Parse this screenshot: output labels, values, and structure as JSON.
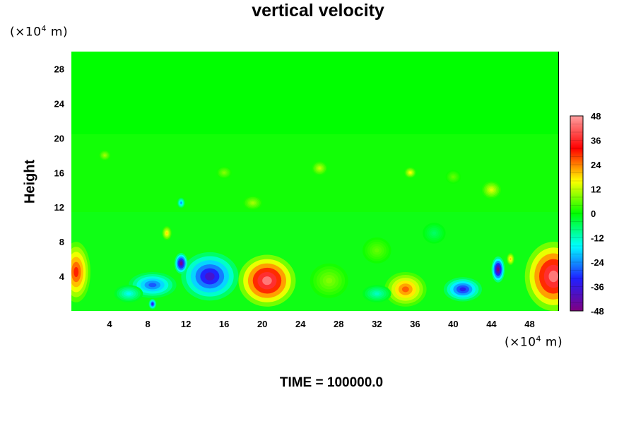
{
  "chart_data": {
    "type": "heatmap",
    "title": "vertical velocity",
    "xlabel": "",
    "ylabel": "Height",
    "x_unit": "(×10",
    "x_unit_exp": "4",
    "x_unit_suffix": " m)",
    "y_unit": "(×10",
    "y_unit_exp": "4",
    "y_unit_suffix": " m)",
    "xlim": [
      0,
      51
    ],
    "ylim": [
      0,
      30
    ],
    "x_ticks": [
      4,
      8,
      12,
      16,
      20,
      24,
      28,
      32,
      36,
      40,
      44,
      48
    ],
    "y_ticks": [
      4,
      8,
      12,
      16,
      20,
      24,
      28
    ],
    "colorbar": {
      "range": [
        -48,
        48
      ],
      "ticks": [
        48,
        36,
        24,
        12,
        0,
        -12,
        -24,
        -36,
        -48
      ],
      "colors": [
        "#800080",
        "#2020ff",
        "#00ffff",
        "#00ff00",
        "#ffff00",
        "#ff0000",
        "#ffa0a0"
      ]
    },
    "background_value": 0,
    "features": [
      {
        "x": 20.5,
        "y": 3.5,
        "rx": 3.0,
        "ry": 3.0,
        "value": 44
      },
      {
        "x": 50.5,
        "y": 4.0,
        "rx": 3.0,
        "ry": 4.0,
        "value": 44
      },
      {
        "x": 0.5,
        "y": 4.5,
        "rx": 1.5,
        "ry": 3.5,
        "value": 30
      },
      {
        "x": 35.0,
        "y": 2.5,
        "rx": 2.2,
        "ry": 2.0,
        "value": 26
      },
      {
        "x": 14.5,
        "y": 4.0,
        "rx": 3.0,
        "ry": 2.8,
        "value": -38
      },
      {
        "x": 11.5,
        "y": 5.5,
        "rx": 0.7,
        "ry": 1.2,
        "value": -46
      },
      {
        "x": 41.0,
        "y": 2.5,
        "rx": 2.0,
        "ry": 1.4,
        "value": -34
      },
      {
        "x": 44.7,
        "y": 4.8,
        "rx": 0.7,
        "ry": 1.5,
        "value": -48
      },
      {
        "x": 8.5,
        "y": 3.0,
        "rx": 2.5,
        "ry": 1.5,
        "value": -28
      },
      {
        "x": 6.0,
        "y": 2.0,
        "rx": 1.5,
        "ry": 1.0,
        "value": -15
      },
      {
        "x": 8.5,
        "y": 0.8,
        "rx": 0.4,
        "ry": 0.6,
        "value": -36
      },
      {
        "x": 10.0,
        "y": 9.0,
        "rx": 0.5,
        "ry": 0.8,
        "value": 18
      },
      {
        "x": 11.5,
        "y": 12.5,
        "rx": 0.4,
        "ry": 0.6,
        "value": -24
      },
      {
        "x": 27.0,
        "y": 3.5,
        "rx": 2.0,
        "ry": 2.0,
        "value": 8
      },
      {
        "x": 32.0,
        "y": 2.0,
        "rx": 1.5,
        "ry": 1.0,
        "value": -12
      },
      {
        "x": 26.0,
        "y": 16.5,
        "rx": 0.8,
        "ry": 0.8,
        "value": 12
      },
      {
        "x": 35.5,
        "y": 16.0,
        "rx": 0.6,
        "ry": 0.6,
        "value": 16
      },
      {
        "x": 44.0,
        "y": 14.0,
        "rx": 1.0,
        "ry": 1.0,
        "value": 14
      },
      {
        "x": 32.0,
        "y": 7.0,
        "rx": 1.5,
        "ry": 1.5,
        "value": 6
      },
      {
        "x": 3.5,
        "y": 18.0,
        "rx": 0.6,
        "ry": 0.6,
        "value": 10
      },
      {
        "x": 38.0,
        "y": 9.0,
        "rx": 1.2,
        "ry": 1.2,
        "value": -6
      },
      {
        "x": 46.0,
        "y": 6.0,
        "rx": 0.4,
        "ry": 0.7,
        "value": 20
      },
      {
        "x": 19.0,
        "y": 12.5,
        "rx": 1.0,
        "ry": 0.8,
        "value": 10
      },
      {
        "x": 16.0,
        "y": 16.0,
        "rx": 0.8,
        "ry": 0.7,
        "value": 8
      },
      {
        "x": 40.0,
        "y": 15.5,
        "rx": 0.8,
        "ry": 0.8,
        "value": 6
      }
    ],
    "time_label": "TIME = 100000.0"
  }
}
